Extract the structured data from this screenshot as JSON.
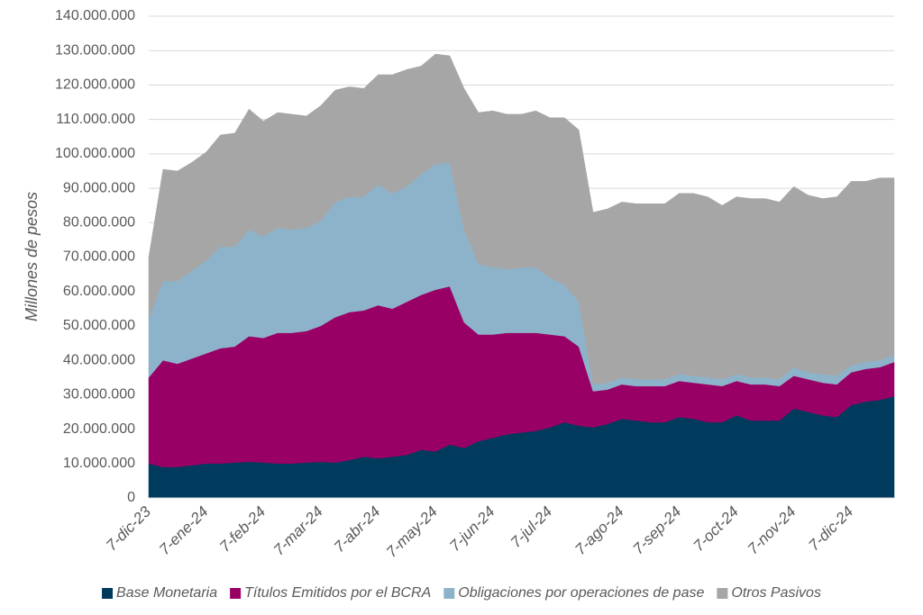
{
  "chart_data": {
    "type": "stacked_area",
    "y_label": "Millones de pesos",
    "categories": [
      "7-dic-23",
      null,
      null,
      null,
      "7-ene-24",
      null,
      null,
      null,
      "7-feb-24",
      null,
      null,
      null,
      "7-mar-24",
      null,
      null,
      null,
      "7-abr-24",
      null,
      null,
      null,
      "7-may-24",
      null,
      null,
      null,
      "7-jun-24",
      null,
      null,
      null,
      "7-jul-24",
      null,
      null,
      null,
      null,
      "7-ago-24",
      null,
      null,
      null,
      "7-sep-24",
      null,
      null,
      null,
      "7-oct-24",
      null,
      null,
      null,
      "7-nov-24",
      null,
      null,
      null,
      "7-dic-24",
      null,
      null,
      null
    ],
    "series": [
      {
        "name": "Base Monetaria",
        "color": "#003a5d",
        "values": [
          10000000,
          9000000,
          9000000,
          9500000,
          10000000,
          10000000,
          10300000,
          10500000,
          10300000,
          10000000,
          10000000,
          10300000,
          10500000,
          10300000,
          11000000,
          12000000,
          11500000,
          12000000,
          12500000,
          14000000,
          13500000,
          15500000,
          14500000,
          16500000,
          17500000,
          18500000,
          19000000,
          19500000,
          20500000,
          22000000,
          21000000,
          20500000,
          21500000,
          23000000,
          22500000,
          22000000,
          22000000,
          23500000,
          23000000,
          22000000,
          22000000,
          24000000,
          22500000,
          22500000,
          22500000,
          26000000,
          25000000,
          24000000,
          23500000,
          27000000,
          28000000,
          28500000,
          29500000
        ]
      },
      {
        "name": "Títulos Emitidos por el BCRA",
        "color": "#990066",
        "values": [
          25000000,
          31000000,
          30000000,
          31000000,
          32000000,
          33500000,
          33700000,
          36500000,
          36200000,
          38000000,
          38000000,
          38200000,
          39500000,
          42200000,
          43000000,
          42500000,
          44500000,
          43000000,
          44500000,
          45000000,
          47000000,
          46000000,
          36500000,
          31000000,
          30000000,
          29500000,
          29000000,
          28500000,
          27000000,
          25000000,
          23000000,
          10500000,
          10000000,
          10000000,
          10000000,
          10500000,
          10500000,
          10500000,
          10500000,
          11000000,
          10500000,
          10000000,
          10500000,
          10500000,
          10000000,
          9500000,
          9500000,
          9500000,
          9500000,
          9500000,
          9500000,
          9500000,
          10000000
        ]
      },
      {
        "name": "Obligaciones por operaciones de pase",
        "color": "#8db3cb",
        "values": [
          17000000,
          23000000,
          24000000,
          25500000,
          27000000,
          29500000,
          29000000,
          31000000,
          29500000,
          30500000,
          30000000,
          30000000,
          30500000,
          33500000,
          33500000,
          33000000,
          35000000,
          33500000,
          33500000,
          35000000,
          36500000,
          36000000,
          27000000,
          20500000,
          19500000,
          18500000,
          19000000,
          19000000,
          16500000,
          15000000,
          13000000,
          2000000,
          2000000,
          2000000,
          2000000,
          2000000,
          2000000,
          2000000,
          2000000,
          2000000,
          2000000,
          2000000,
          2000000,
          2000000,
          2000000,
          2500000,
          2000000,
          2500000,
          2500000,
          2000000,
          2000000,
          2000000,
          2000000
        ]
      },
      {
        "name": "Otros Pasivos",
        "color": "#a6a6a6",
        "values": [
          18000000,
          32500000,
          32000000,
          31500000,
          31500000,
          32500000,
          33000000,
          35000000,
          33500000,
          33500000,
          33500000,
          32500000,
          33500000,
          32500000,
          32000000,
          31500000,
          32000000,
          34500000,
          34000000,
          31500000,
          32000000,
          31000000,
          41000000,
          44000000,
          45500000,
          45000000,
          44500000,
          45500000,
          46500000,
          48500000,
          50000000,
          50000000,
          50500000,
          51000000,
          51000000,
          51000000,
          51000000,
          52500000,
          53000000,
          52500000,
          50500000,
          51500000,
          52000000,
          52000000,
          51500000,
          52500000,
          51500000,
          51000000,
          52000000,
          53500000,
          52500000,
          53000000,
          51500000
        ]
      }
    ],
    "ylim": [
      0,
      140000000
    ],
    "yticks": [
      0,
      {
        "value": 10000000,
        "label": "10.000.000"
      },
      {
        "value": 20000000,
        "label": "20.000.000"
      },
      {
        "value": 30000000,
        "label": "30.000.000"
      },
      {
        "value": 40000000,
        "label": "40.000.000"
      },
      {
        "value": 50000000,
        "label": "50.000.000"
      },
      {
        "value": 60000000,
        "label": "60.000.000"
      },
      {
        "value": 70000000,
        "label": "70.000.000"
      },
      {
        "value": 80000000,
        "label": "80.000.000"
      },
      {
        "value": 90000000,
        "label": "90.000.000"
      },
      {
        "value": 100000000,
        "label": "100.000.000"
      },
      {
        "value": 110000000,
        "label": "110.000.000"
      },
      {
        "value": 120000000,
        "label": "120.000.000"
      },
      {
        "value": 130000000,
        "label": "130.000.000"
      },
      {
        "value": 140000000,
        "label": "140.000.000"
      }
    ],
    "grid": true,
    "legend": "bottom"
  }
}
